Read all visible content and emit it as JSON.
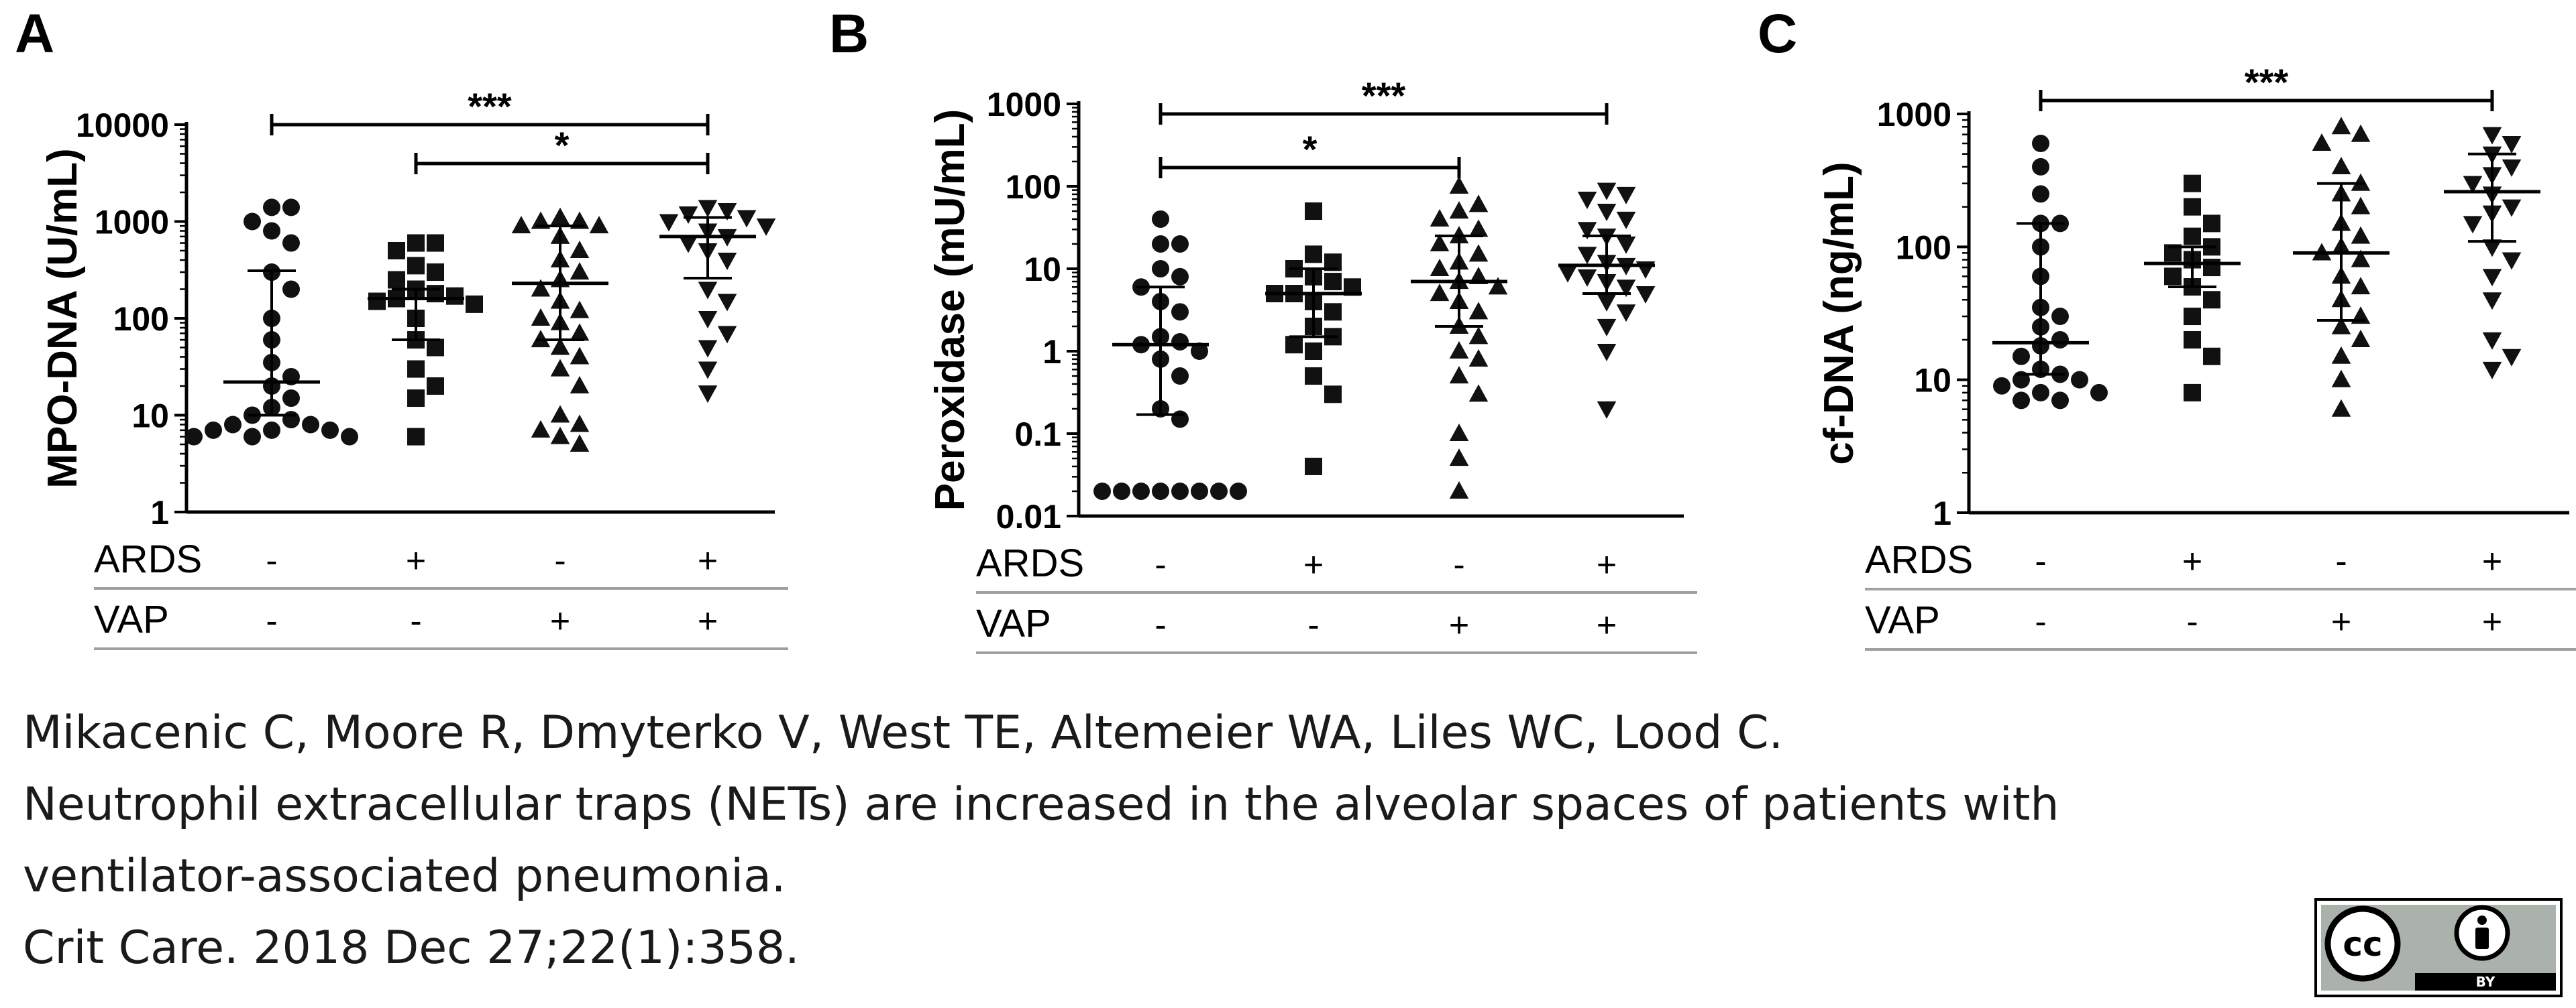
{
  "panels": [
    {
      "letter": "A",
      "ylabel": "MPO-DNA (U/mL)",
      "yticks": [
        "10000",
        "1000",
        "100",
        "10",
        "1"
      ],
      "marker": "circle-square-triangle-invtriangle",
      "sig": [
        {
          "text": "***",
          "from": 0,
          "to": 3
        },
        {
          "text": "*",
          "from": 1,
          "to": 3
        }
      ]
    },
    {
      "letter": "B",
      "ylabel": "Peroxidase (mU/mL)",
      "yticks": [
        "1000",
        "100",
        "10",
        "1",
        "0.1",
        "0.01"
      ],
      "sig": [
        {
          "text": "***",
          "from": 0,
          "to": 3
        },
        {
          "text": "*",
          "from": 0,
          "to": 2
        }
      ]
    },
    {
      "letter": "C",
      "ylabel": "cf-DNA (ng/mL)",
      "yticks": [
        "1000",
        "100",
        "10",
        "1"
      ],
      "sig": [
        {
          "text": "***",
          "from": 0,
          "to": 3
        }
      ]
    }
  ],
  "groups": {
    "row_labels": [
      "ARDS",
      "VAP"
    ],
    "ARDS": [
      "-",
      "+",
      "-",
      "+"
    ],
    "VAP": [
      "-",
      "-",
      "+",
      "+"
    ]
  },
  "chart_data": [
    {
      "type": "scatter",
      "title": "A",
      "ylabel": "MPO-DNA (U/mL)",
      "yscale": "log",
      "ylim": [
        1,
        10000
      ],
      "categories": [
        "ARDS- VAP-",
        "ARDS+ VAP-",
        "ARDS- VAP+",
        "ARDS+ VAP+"
      ],
      "medians": [
        22,
        160,
        230,
        700
      ],
      "iqr": [
        [
          10,
          310
        ],
        [
          60,
          200
        ],
        [
          60,
          900
        ],
        [
          260,
          1100
        ]
      ],
      "series": [
        {
          "name": "ARDS- VAP-",
          "values": [
            1400,
            1400,
            1000,
            800,
            600,
            300,
            200,
            100,
            60,
            35,
            25,
            20,
            15,
            12,
            10,
            9,
            8,
            8,
            7,
            7,
            7,
            6,
            6,
            6
          ]
        },
        {
          "name": "ARDS+ VAP-",
          "values": [
            600,
            600,
            500,
            350,
            300,
            250,
            200,
            180,
            170,
            160,
            150,
            140,
            100,
            60,
            50,
            30,
            20,
            15,
            6
          ]
        },
        {
          "name": "ARDS- VAP+",
          "values": [
            1100,
            1000,
            1000,
            900,
            900,
            700,
            500,
            400,
            300,
            250,
            200,
            150,
            120,
            100,
            90,
            70,
            60,
            50,
            40,
            30,
            20,
            10,
            8,
            7,
            6,
            5
          ]
        },
        {
          "name": "ARDS+ VAP+",
          "values": [
            1400,
            1300,
            1200,
            1100,
            1000,
            900,
            800,
            700,
            600,
            500,
            400,
            200,
            150,
            100,
            70,
            50,
            30,
            17
          ]
        }
      ],
      "significance": [
        {
          "groups": [
            1,
            4
          ],
          "label": "***"
        },
        {
          "groups": [
            2,
            4
          ],
          "label": "*"
        }
      ]
    },
    {
      "type": "scatter",
      "title": "B",
      "ylabel": "Peroxidase (mU/mL)",
      "yscale": "log",
      "ylim": [
        0.01,
        1000
      ],
      "categories": [
        "ARDS- VAP-",
        "ARDS+ VAP-",
        "ARDS- VAP+",
        "ARDS+ VAP+"
      ],
      "medians": [
        1.2,
        5,
        7,
        11
      ],
      "iqr": [
        [
          0.17,
          6
        ],
        [
          1.5,
          10
        ],
        [
          2,
          25
        ],
        [
          5,
          25
        ]
      ],
      "series": [
        {
          "name": "ARDS- VAP-",
          "values": [
            40,
            20,
            20,
            10,
            8,
            6,
            4,
            3,
            1.5,
            1.3,
            1.2,
            1,
            0.8,
            0.5,
            0.2,
            0.15,
            0.02,
            0.02,
            0.02,
            0.02,
            0.02,
            0.02,
            0.02,
            0.02
          ]
        },
        {
          "name": "ARDS+ VAP-",
          "values": [
            50,
            15,
            12,
            10,
            8,
            7,
            6,
            5,
            5,
            4,
            3,
            2,
            1.5,
            1.2,
            1,
            0.5,
            0.3,
            0.04
          ]
        },
        {
          "name": "ARDS- VAP+",
          "values": [
            100,
            60,
            50,
            40,
            30,
            25,
            20,
            15,
            12,
            10,
            8,
            7,
            6,
            5,
            4,
            3,
            2,
            1.5,
            1,
            0.8,
            0.5,
            0.3,
            0.1,
            0.05,
            0.02
          ]
        },
        {
          "name": "ARDS+ VAP+",
          "values": [
            90,
            80,
            70,
            50,
            40,
            30,
            25,
            20,
            15,
            12,
            11,
            10,
            9,
            8,
            7,
            6,
            5,
            4,
            3,
            2,
            1,
            0.2
          ]
        }
      ],
      "significance": [
        {
          "groups": [
            1,
            4
          ],
          "label": "***"
        },
        {
          "groups": [
            1,
            3
          ],
          "label": "*"
        }
      ]
    },
    {
      "type": "scatter",
      "title": "C",
      "ylabel": "cf-DNA (ng/mL)",
      "yscale": "log",
      "ylim": [
        1,
        1000
      ],
      "categories": [
        "ARDS- VAP-",
        "ARDS+ VAP-",
        "ARDS- VAP+",
        "ARDS+ VAP+"
      ],
      "medians": [
        19,
        75,
        90,
        260
      ],
      "iqr": [
        [
          11,
          150
        ],
        [
          50,
          100
        ],
        [
          28,
          300
        ],
        [
          110,
          500
        ]
      ],
      "series": [
        {
          "name": "ARDS- VAP-",
          "values": [
            600,
            400,
            250,
            150,
            150,
            100,
            60,
            35,
            30,
            25,
            20,
            18,
            15,
            12,
            11,
            10,
            10,
            9,
            8,
            8,
            7,
            7
          ]
        },
        {
          "name": "ARDS+ VAP-",
          "values": [
            300,
            200,
            150,
            120,
            100,
            90,
            80,
            70,
            60,
            50,
            40,
            30,
            20,
            15,
            8
          ]
        },
        {
          "name": "ARDS- VAP+",
          "values": [
            800,
            700,
            600,
            400,
            300,
            250,
            200,
            150,
            120,
            100,
            90,
            80,
            60,
            50,
            40,
            30,
            25,
            20,
            15,
            10,
            6
          ]
        },
        {
          "name": "ARDS+ VAP+",
          "values": [
            700,
            600,
            500,
            400,
            350,
            300,
            250,
            200,
            180,
            150,
            100,
            80,
            60,
            40,
            20,
            15,
            12
          ]
        }
      ],
      "significance": [
        {
          "groups": [
            1,
            4
          ],
          "label": "***"
        }
      ]
    }
  ],
  "citation": {
    "authors": "Mikacenic C, Moore R, Dmyterko V, West TE, Altemeier WA, Liles WC, Lood C.",
    "title_line1": "Neutrophil extracellular traps (NETs) are increased in the alveolar spaces of patients with",
    "title_line2": "ventilator-associated pneumonia.",
    "journal": "Crit Care. 2018 Dec 27;22(1):358."
  },
  "license": {
    "cc_text": "cc",
    "by_text": "BY"
  }
}
